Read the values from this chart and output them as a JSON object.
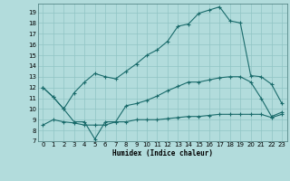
{
  "title": "",
  "xlabel": "Humidex (Indice chaleur)",
  "background_color": "#b2dcdc",
  "grid_color": "#90c4c4",
  "line_color": "#1a6b6b",
  "xlim": [
    -0.5,
    23.5
  ],
  "ylim": [
    7,
    19.8
  ],
  "yticks": [
    7,
    8,
    9,
    10,
    11,
    12,
    13,
    14,
    15,
    16,
    17,
    18,
    19
  ],
  "xticks": [
    0,
    1,
    2,
    3,
    4,
    5,
    6,
    7,
    8,
    9,
    10,
    11,
    12,
    13,
    14,
    15,
    16,
    17,
    18,
    19,
    20,
    21,
    22,
    23
  ],
  "curve1_x": [
    0,
    1,
    2,
    3,
    4,
    5,
    6,
    7,
    8,
    9,
    10,
    11,
    12,
    13,
    14,
    15,
    16,
    17,
    18,
    19,
    20,
    21,
    22,
    23
  ],
  "curve1_y": [
    12.0,
    11.1,
    10.0,
    11.5,
    12.5,
    13.3,
    13.0,
    12.8,
    13.5,
    14.2,
    15.0,
    15.5,
    16.3,
    17.7,
    17.9,
    18.9,
    19.2,
    19.5,
    18.2,
    18.0,
    13.1,
    13.0,
    12.3,
    10.5
  ],
  "curve2_x": [
    0,
    1,
    2,
    3,
    4,
    5,
    6,
    7,
    8,
    9,
    10,
    11,
    12,
    13,
    14,
    15,
    16,
    17,
    18,
    19,
    20,
    21,
    22,
    23
  ],
  "curve2_y": [
    12.0,
    11.1,
    10.0,
    8.8,
    8.8,
    7.2,
    8.8,
    8.8,
    10.3,
    10.5,
    10.8,
    11.2,
    11.7,
    12.1,
    12.5,
    12.5,
    12.7,
    12.9,
    13.0,
    13.0,
    12.5,
    11.0,
    9.3,
    9.7
  ],
  "curve3_x": [
    0,
    1,
    2,
    3,
    4,
    5,
    6,
    7,
    8,
    9,
    10,
    11,
    12,
    13,
    14,
    15,
    16,
    17,
    18,
    19,
    20,
    21,
    22,
    23
  ],
  "curve3_y": [
    8.5,
    9.0,
    8.8,
    8.7,
    8.5,
    8.5,
    8.5,
    8.8,
    8.8,
    9.0,
    9.0,
    9.0,
    9.1,
    9.2,
    9.3,
    9.3,
    9.4,
    9.5,
    9.5,
    9.5,
    9.5,
    9.5,
    9.2,
    9.5
  ]
}
